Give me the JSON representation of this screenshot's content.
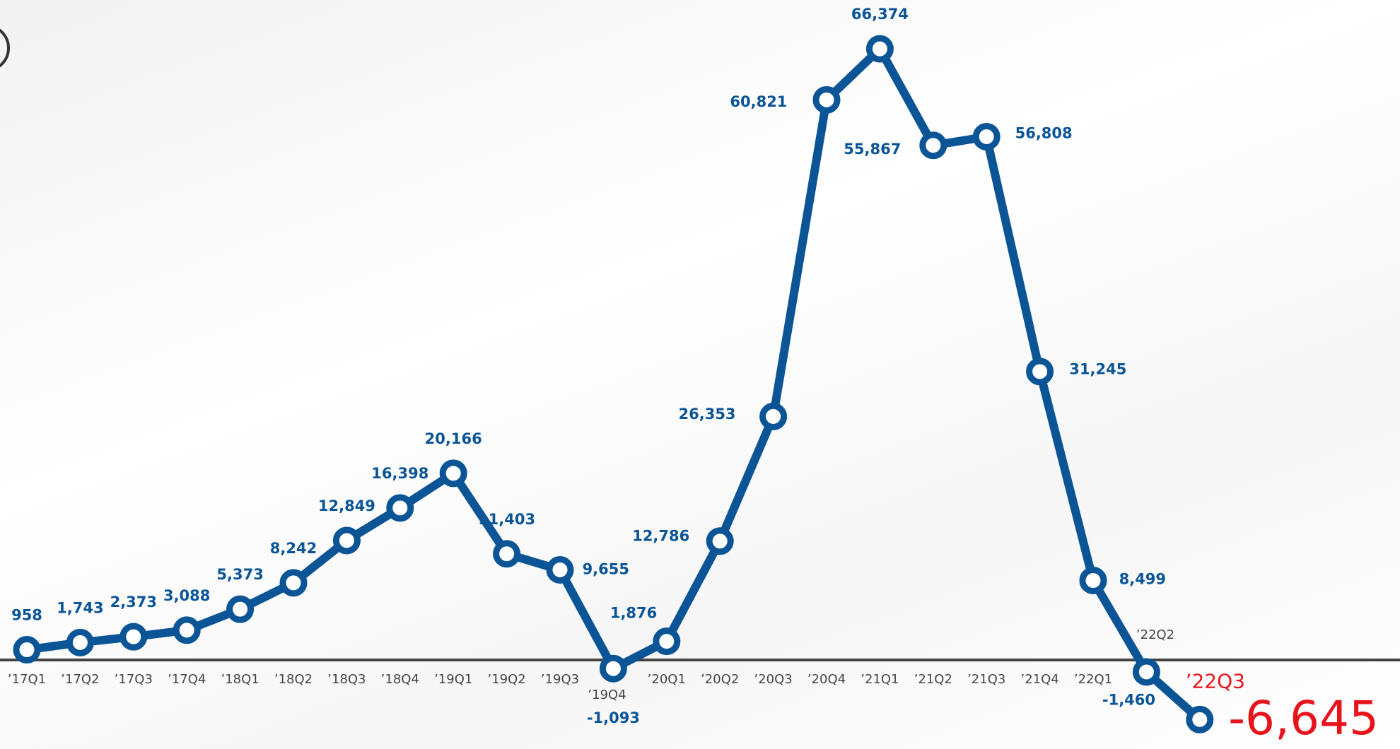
{
  "chart_data": {
    "type": "line",
    "categories": [
      "’17Q1",
      "’17Q2",
      "’17Q3",
      "’17Q4",
      "’18Q1",
      "’18Q2",
      "’18Q3",
      "’18Q4",
      "’19Q1",
      "’19Q2",
      "’19Q3",
      "’19Q4",
      "’20Q1",
      "’20Q2",
      "’20Q3",
      "’20Q4",
      "’21Q1",
      "’21Q2",
      "’21Q3",
      "’21Q4",
      "’22Q1",
      "’22Q2",
      "’22Q3"
    ],
    "series": [
      {
        "name": null,
        "color": "#0b5597",
        "values": [
          958,
          1743,
          2373,
          3088,
          5373,
          8242,
          12849,
          16398,
          20166,
          11403,
          9655,
          -1093,
          1876,
          12786,
          26353,
          60821,
          66374,
          55867,
          56808,
          31245,
          8499,
          -1460,
          -6645
        ],
        "value_labels": [
          "958",
          "1,743",
          "2,373",
          "3,088",
          "5,373",
          "8,242",
          "12,849",
          "16,398",
          "20,166",
          "11,403",
          "9,655",
          "-1,093",
          "1,876",
          "12,786",
          "26,353",
          "60,821",
          "66,374",
          "55,867",
          "56,808",
          "31,245",
          "8,499",
          "-1,460",
          "-6,645"
        ]
      }
    ],
    "highlight_color": "#e8141b",
    "ylim": [
      -9000,
      70000
    ]
  }
}
